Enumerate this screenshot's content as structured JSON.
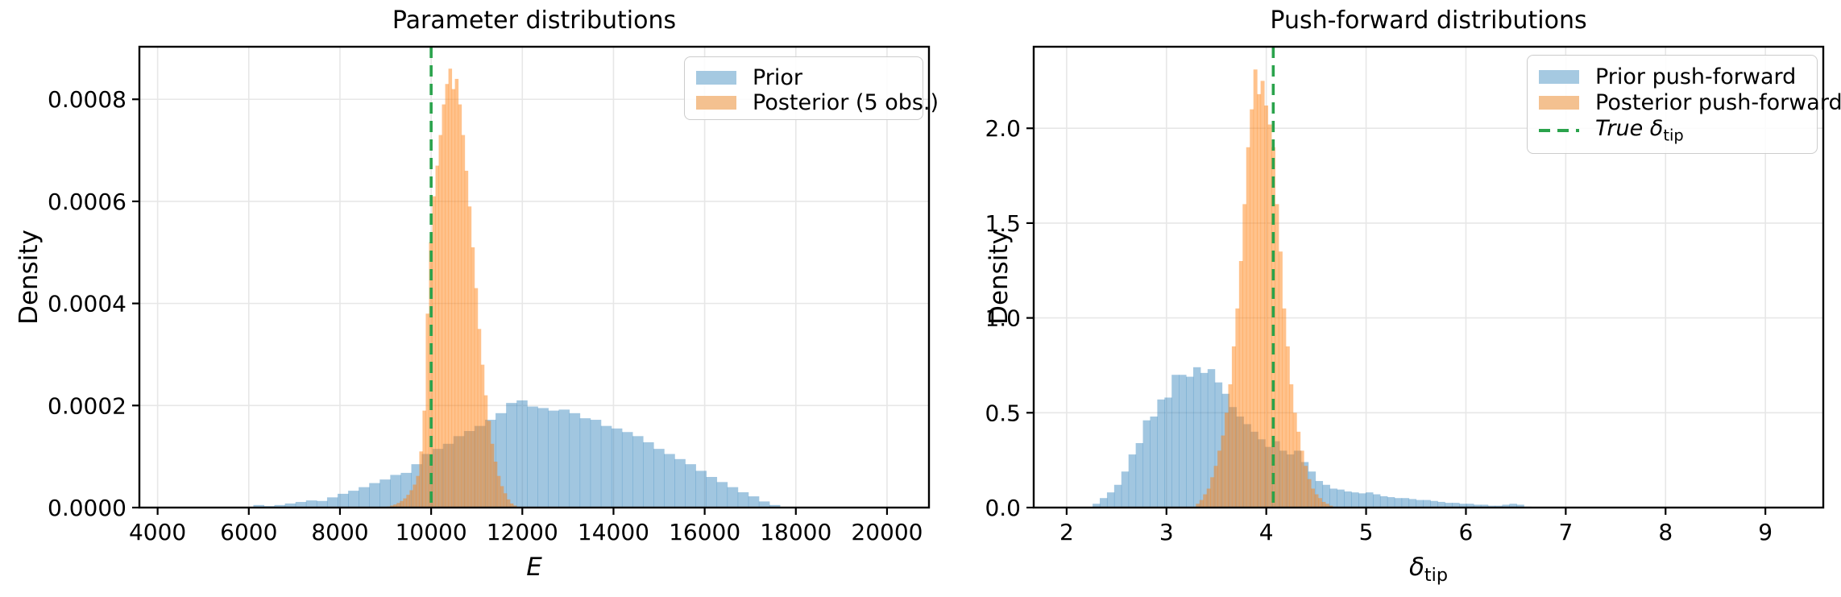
{
  "figure": {
    "background": "#ffffff"
  },
  "colors": {
    "prior_fill": "rgba(31,119,180,0.42)",
    "posterior_fill": "rgba(255,127,14,0.48)",
    "true_value_line": "#2aa34c",
    "grid": "#e7e7e7",
    "spine": "#000000",
    "legend_swatch_prior": "#a5c9e1",
    "legend_swatch_posterior": "#f4c190"
  },
  "chart_data": [
    {
      "type": "bar",
      "subtype": "histogram",
      "title": "Parameter distributions",
      "xlabel": "E",
      "xlabel_subscript": "",
      "ylabel": "Density",
      "xlim": [
        3600,
        20920
      ],
      "ylim": [
        0,
        0.000903
      ],
      "grid": true,
      "legend_position": "upper right",
      "xticks": [
        4000,
        6000,
        8000,
        10000,
        12000,
        14000,
        16000,
        18000,
        20000
      ],
      "xtick_labels": [
        "4000",
        "6000",
        "8000",
        "10000",
        "12000",
        "14000",
        "16000",
        "18000",
        "20000"
      ],
      "yticks": [
        0,
        0.0002,
        0.0004,
        0.0006,
        0.0008
      ],
      "ytick_labels": [
        "0.0000",
        "0.0002",
        "0.0004",
        "0.0006",
        "0.0008"
      ],
      "series": [
        {
          "name": "Prior",
          "color": "rgba(31,119,180,0.42)",
          "bin_start": 6100,
          "bin_width": 231,
          "unit_scale": 0.0001,
          "heights": [
            0.05,
            0.03,
            0.05,
            0.08,
            0.11,
            0.14,
            0.13,
            0.2,
            0.27,
            0.33,
            0.4,
            0.48,
            0.55,
            0.64,
            0.68,
            0.85,
            1.05,
            1.15,
            1.25,
            1.4,
            1.5,
            1.6,
            1.72,
            1.85,
            2.05,
            2.1,
            1.98,
            1.95,
            1.9,
            1.92,
            1.85,
            1.75,
            1.72,
            1.6,
            1.55,
            1.48,
            1.4,
            1.28,
            1.15,
            1.05,
            0.95,
            0.85,
            0.72,
            0.6,
            0.5,
            0.4,
            0.3,
            0.22,
            0.12,
            0.05
          ]
        },
        {
          "name": "Posterior (5 obs.)",
          "color": "rgba(255,127,14,0.48)",
          "bin_start": 9030,
          "bin_width": 71,
          "unit_scale": 0.0001,
          "heights": [
            0.02,
            0.04,
            0.06,
            0.09,
            0.13,
            0.18,
            0.25,
            0.34,
            0.45,
            0.62,
            1.1,
            1.9,
            3.8,
            5.2,
            6.1,
            6.7,
            7.3,
            7.9,
            8.3,
            8.6,
            8.2,
            8.4,
            7.9,
            7.3,
            6.6,
            5.9,
            5.1,
            4.3,
            3.5,
            2.8,
            2.2,
            1.7,
            1.25,
            0.9,
            0.62,
            0.42,
            0.28,
            0.16,
            0.08,
            0.04
          ]
        }
      ],
      "vline": {
        "x": 10000,
        "color": "#2aa34c",
        "style": "dashed"
      }
    },
    {
      "type": "bar",
      "subtype": "histogram",
      "title": "Push-forward distributions",
      "xlabel": "δ",
      "xlabel_subscript": "tip",
      "ylabel": "Density",
      "xlim": [
        1.67,
        9.58
      ],
      "ylim": [
        0,
        2.43
      ],
      "grid": true,
      "legend_position": "upper right",
      "xticks": [
        2,
        3,
        4,
        5,
        6,
        7,
        8,
        9
      ],
      "xtick_labels": [
        "2",
        "3",
        "4",
        "5",
        "6",
        "7",
        "8",
        "9"
      ],
      "yticks": [
        0,
        0.5,
        1.0,
        1.5,
        2.0
      ],
      "ytick_labels": [
        "0.0",
        "0.5",
        "1.0",
        "1.5",
        "2.0"
      ],
      "series": [
        {
          "name": "Prior push-forward",
          "color": "rgba(31,119,180,0.42)",
          "bin_start": 2.26,
          "bin_width": 0.072,
          "unit_scale": 1,
          "heights": [
            0.02,
            0.05,
            0.08,
            0.12,
            0.19,
            0.28,
            0.34,
            0.46,
            0.48,
            0.57,
            0.58,
            0.7,
            0.7,
            0.69,
            0.74,
            0.71,
            0.73,
            0.66,
            0.6,
            0.53,
            0.48,
            0.44,
            0.4,
            0.36,
            0.32,
            0.35,
            0.3,
            0.28,
            0.3,
            0.24,
            0.19,
            0.14,
            0.12,
            0.1,
            0.095,
            0.085,
            0.08,
            0.075,
            0.08,
            0.07,
            0.06,
            0.055,
            0.05,
            0.05,
            0.045,
            0.04,
            0.04,
            0.035,
            0.03,
            0.025,
            0.025,
            0.02,
            0.02,
            0.015,
            0.015,
            0.01,
            0.01,
            0.015,
            0.02,
            0.015,
            0.005
          ]
        },
        {
          "name": "Posterior push-forward",
          "color": "rgba(255,127,14,0.48)",
          "bin_start": 3.295,
          "bin_width": 0.036,
          "unit_scale": 1,
          "heights": [
            0.02,
            0.04,
            0.07,
            0.1,
            0.16,
            0.22,
            0.3,
            0.38,
            0.5,
            0.65,
            0.85,
            1.05,
            1.3,
            1.6,
            1.9,
            2.1,
            2.31,
            2.18,
            2.25,
            2.12,
            2.02,
            1.9,
            1.6,
            1.35,
            1.05,
            0.85,
            0.65,
            0.5,
            0.4,
            0.3,
            0.22,
            0.15,
            0.1,
            0.07,
            0.05,
            0.03,
            0.02,
            0.01
          ]
        }
      ],
      "vline": {
        "x": 4.07,
        "color": "#2aa34c",
        "style": "dashed",
        "legend_label_main": "True δ",
        "legend_label_sub": "tip"
      }
    }
  ]
}
